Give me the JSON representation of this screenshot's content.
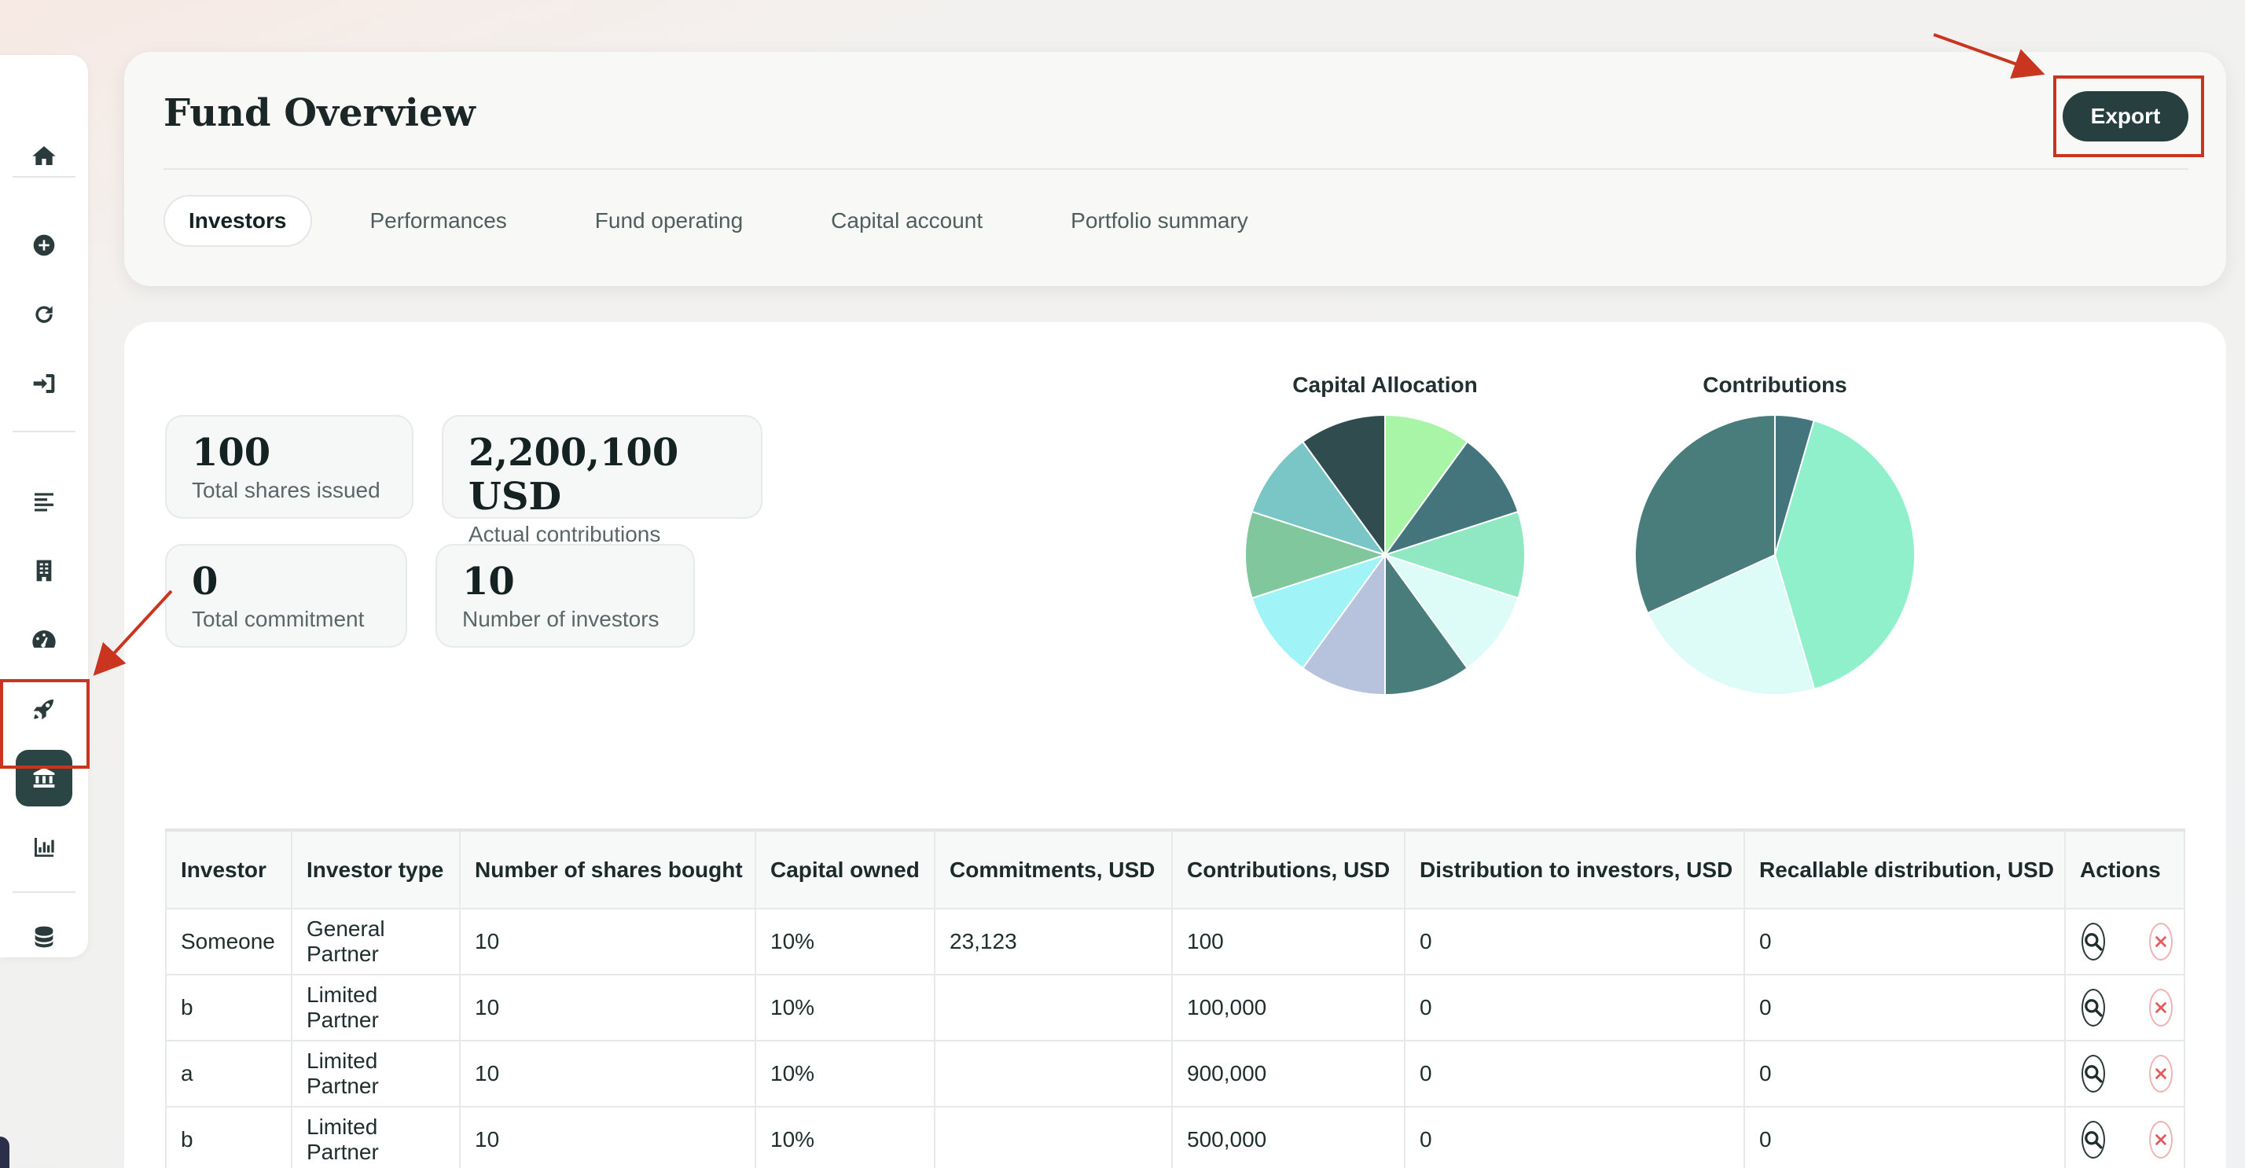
{
  "header": {
    "title": "Fund Overview",
    "export_label": "Export",
    "tabs": [
      {
        "label": "Investors",
        "active": true
      },
      {
        "label": "Performances",
        "active": false
      },
      {
        "label": "Fund operating",
        "active": false
      },
      {
        "label": "Capital account",
        "active": false
      },
      {
        "label": "Portfolio summary",
        "active": false
      }
    ]
  },
  "sidebar": {
    "items": [
      {
        "icon": "home-icon"
      },
      {
        "icon": "plus-circle-icon"
      },
      {
        "icon": "refresh-icon"
      },
      {
        "icon": "sign-in-icon"
      },
      {
        "icon": "align-left-icon"
      },
      {
        "icon": "building-icon"
      },
      {
        "icon": "gauge-icon"
      },
      {
        "icon": "rocket-icon"
      },
      {
        "icon": "bank-icon",
        "active": true
      },
      {
        "icon": "bar-chart-icon"
      },
      {
        "icon": "database-icon"
      }
    ]
  },
  "stats": [
    {
      "value": "100",
      "label": "Total shares issued"
    },
    {
      "value": "2,200,100 USD",
      "label": "Actual contributions"
    },
    {
      "value": "0",
      "label": "Total commitment"
    },
    {
      "value": "10",
      "label": "Number of investors"
    }
  ],
  "charts": {
    "capital_title": "Capital Allocation",
    "contrib_title": "Contributions"
  },
  "chart_data": [
    {
      "type": "pie",
      "title": "Capital Allocation",
      "values": [
        10,
        10,
        10,
        10,
        10,
        10,
        10,
        10,
        10,
        10
      ],
      "colors": [
        "#a8f5a8",
        "#44747c",
        "#8fe8c2",
        "#defcf7",
        "#487d7b",
        "#b7c2dc",
        "#a0f4f7",
        "#80c79e",
        "#7ac6c6",
        "#304c4f"
      ]
    },
    {
      "type": "pie",
      "title": "Contributions",
      "values": [
        4.5,
        40.9,
        22.7,
        31.8
      ],
      "colors": [
        "#44747c",
        "#8ff0cb",
        "#defcf7",
        "#487d7b"
      ]
    }
  ],
  "table": {
    "headers": [
      "Investor",
      "Investor type",
      "Number of shares bought",
      "Capital owned",
      "Commitments, USD",
      "Contributions, USD",
      "Distribution to investors, USD",
      "Recallable distribution, USD",
      "Actions"
    ],
    "rows": [
      {
        "investor": "Someone",
        "type": "General Partner",
        "shares": "10",
        "capital": "10%",
        "commitments": "23,123",
        "contributions": "100",
        "distribution": "0",
        "recallable": "0"
      },
      {
        "investor": "b",
        "type": "Limited Partner",
        "shares": "10",
        "capital": "10%",
        "commitments": "",
        "contributions": "100,000",
        "distribution": "0",
        "recallable": "0"
      },
      {
        "investor": "a",
        "type": "Limited Partner",
        "shares": "10",
        "capital": "10%",
        "commitments": "",
        "contributions": "900,000",
        "distribution": "0",
        "recallable": "0"
      },
      {
        "investor": "b",
        "type": "Limited Partner",
        "shares": "10",
        "capital": "10%",
        "commitments": "",
        "contributions": "500,000",
        "distribution": "0",
        "recallable": "0"
      }
    ]
  },
  "colors": {
    "accent": "#27403f",
    "annotation": "#c9351f"
  }
}
